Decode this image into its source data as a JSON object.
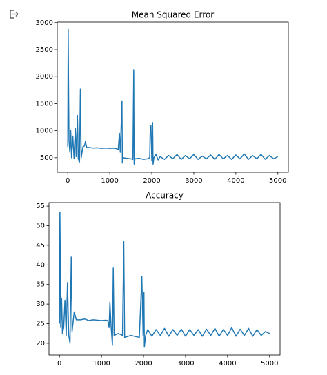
{
  "chart_data": [
    {
      "type": "line",
      "title": "Mean Squared Error",
      "xlim": [
        -250,
        5250
      ],
      "ylim": [
        230,
        3010
      ],
      "xticks": [
        0,
        1000,
        2000,
        3000,
        4000,
        5000
      ],
      "yticks": [
        500,
        1000,
        1500,
        2000,
        2500,
        3000
      ],
      "series": [
        {
          "color": "#1f77b4",
          "x": [
            0,
            10,
            20,
            30,
            50,
            70,
            90,
            120,
            150,
            180,
            200,
            230,
            250,
            280,
            300,
            320,
            360,
            400,
            420,
            450,
            500,
            600,
            700,
            800,
            900,
            1000,
            1100,
            1150,
            1200,
            1230,
            1250,
            1270,
            1290,
            1300,
            1320,
            1400,
            1500,
            1550,
            1570,
            1580,
            1600,
            1700,
            1800,
            1900,
            1950,
            1960,
            1980,
            2000,
            2020,
            2030,
            2050,
            2100,
            2150,
            2200,
            2300,
            2400,
            2500,
            2600,
            2700,
            2800,
            2900,
            3000,
            3100,
            3200,
            3300,
            3400,
            3500,
            3600,
            3700,
            3800,
            3900,
            4000,
            4100,
            4200,
            4300,
            4400,
            4500,
            4600,
            4700,
            4800,
            4900,
            5000
          ],
          "values": [
            700,
            2880,
            1700,
            800,
            600,
            1000,
            500,
            900,
            480,
            1050,
            520,
            1280,
            480,
            420,
            1770,
            500,
            700,
            720,
            800,
            690,
            690,
            680,
            685,
            675,
            680,
            675,
            678,
            672,
            650,
            950,
            600,
            1080,
            1550,
            400,
            500,
            490,
            480,
            470,
            2130,
            380,
            480,
            490,
            470,
            480,
            500,
            930,
            1100,
            450,
            1150,
            380,
            500,
            560,
            460,
            520,
            470,
            540,
            480,
            560,
            470,
            540,
            480,
            560,
            470,
            530,
            480,
            550,
            470,
            560,
            480,
            540,
            470,
            550,
            480,
            570,
            470,
            540,
            480,
            560,
            470,
            540,
            480,
            520
          ]
        }
      ]
    },
    {
      "type": "line",
      "title": "Accuracy",
      "xlim": [
        -250,
        5250
      ],
      "ylim": [
        17,
        55.9
      ],
      "xticks": [
        0,
        1000,
        2000,
        3000,
        4000,
        5000
      ],
      "yticks": [
        20,
        25,
        30,
        35,
        40,
        45,
        50,
        55
      ],
      "series": [
        {
          "color": "#1f77b4",
          "x": [
            0,
            10,
            20,
            30,
            50,
            70,
            100,
            130,
            160,
            190,
            220,
            250,
            280,
            300,
            350,
            400,
            500,
            600,
            700,
            800,
            900,
            1000,
            1100,
            1150,
            1180,
            1200,
            1230,
            1260,
            1280,
            1300,
            1400,
            1500,
            1530,
            1550,
            1700,
            1900,
            1960,
            1990,
            2010,
            2020,
            2050,
            2100,
            2200,
            2300,
            2400,
            2500,
            2600,
            2700,
            2800,
            2900,
            3000,
            3100,
            3200,
            3300,
            3400,
            3500,
            3600,
            3700,
            3800,
            3900,
            4000,
            4100,
            4200,
            4300,
            4400,
            4500,
            4600,
            4700,
            4800,
            4900,
            5000
          ],
          "values": [
            25,
            53.5,
            41,
            24,
            31.5,
            22.5,
            24,
            31,
            22,
            35.5,
            22,
            20,
            42,
            23,
            28,
            26,
            26,
            26.2,
            25.8,
            26,
            25.9,
            25.8,
            25.9,
            25.8,
            24,
            30.5,
            24,
            19.5,
            39.2,
            22,
            22.5,
            22,
            46,
            21.5,
            22,
            21.5,
            37,
            22,
            33,
            19,
            22,
            23.5,
            21.8,
            23.5,
            22,
            23.8,
            21.8,
            23.5,
            22,
            23.6,
            21.8,
            23.5,
            22,
            23.5,
            21.8,
            23.6,
            22,
            23.8,
            21.8,
            23.5,
            22,
            24,
            21.8,
            23.6,
            22,
            23.8,
            21.8,
            23.5,
            22,
            23,
            22.5
          ]
        }
      ]
    }
  ]
}
